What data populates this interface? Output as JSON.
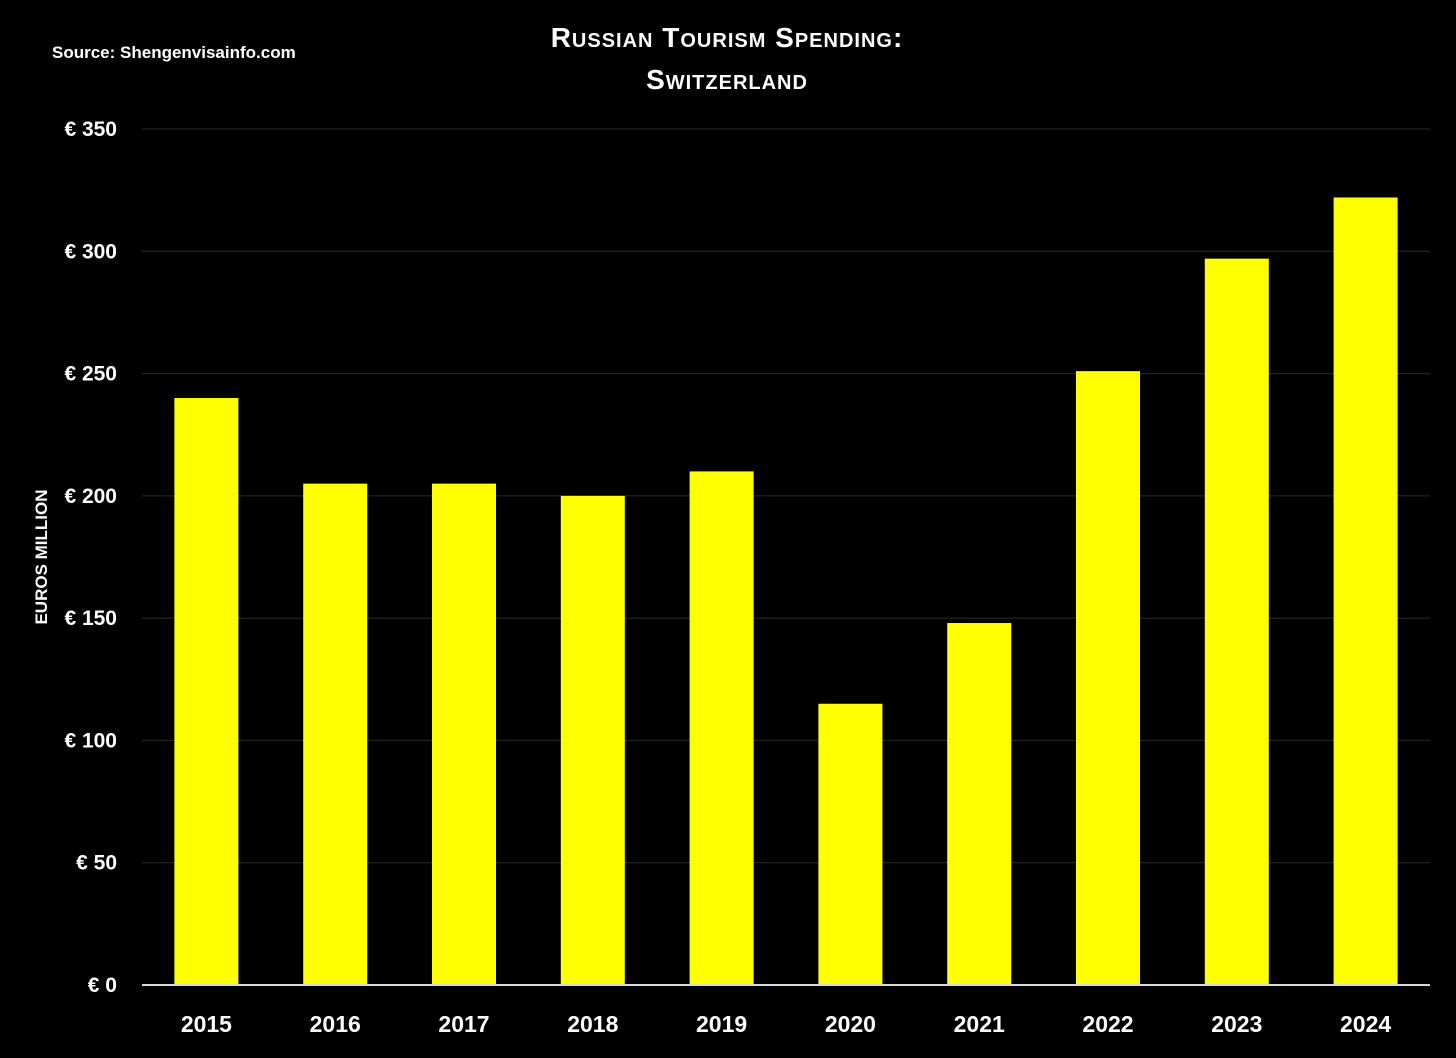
{
  "source": "Source: Shengenvisainfo.com",
  "chart_data": {
    "type": "bar",
    "title_lines": [
      "Russian Tourism Spending:",
      "Switzerland"
    ],
    "ylabel": "EUROS MILLION",
    "xlabel": "",
    "categories": [
      "2015",
      "2016",
      "2017",
      "2018",
      "2019",
      "2020",
      "2021",
      "2022",
      "2023",
      "2024"
    ],
    "values": [
      240,
      205,
      205,
      200,
      210,
      115,
      148,
      251,
      297,
      322
    ],
    "ylim": [
      0,
      350
    ],
    "y_ticks": [
      0,
      50,
      100,
      150,
      200,
      250,
      300,
      350
    ],
    "y_tick_prefix": "€ ",
    "grid": true,
    "colors": {
      "bar": "#FFFF00",
      "background": "#000000",
      "grid": "#2a2a2a",
      "axis": "#d9d9d9",
      "text": "#ffffff"
    }
  }
}
